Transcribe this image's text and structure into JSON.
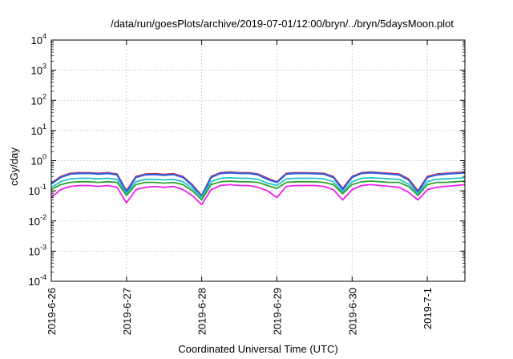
{
  "chart_data": {
    "type": "line",
    "title": "/data/run/goesPlots/archive/2019-07-01/12:00/bryn/../bryn/5daysMoon.plot",
    "xlabel": "Coordinated Universal Time (UTC)",
    "ylabel": "cGy/day",
    "yscale": "log",
    "ylim": [
      0.0001,
      10000
    ],
    "xlim": [
      "2019-06-26",
      "2019-07-01 12:00"
    ],
    "grid": true,
    "x_ticks": [
      "2019-6-26",
      "2019-6-27",
      "2019-6-28",
      "2019-6-29",
      "2019-6-30",
      "2019-7-1"
    ],
    "y_ticks": [
      {
        "base": "10",
        "exp": "-4"
      },
      {
        "base": "10",
        "exp": "-3"
      },
      {
        "base": "10",
        "exp": "-2"
      },
      {
        "base": "10",
        "exp": "-1"
      },
      {
        "base": "10",
        "exp": "0"
      },
      {
        "base": "10",
        "exp": "1"
      },
      {
        "base": "10",
        "exp": "2"
      },
      {
        "base": "10",
        "exp": "3"
      },
      {
        "base": "10",
        "exp": "4"
      }
    ],
    "x": [
      "2019-06-26 00:00",
      "2019-06-26 03:00",
      "2019-06-26 06:00",
      "2019-06-26 09:00",
      "2019-06-26 12:00",
      "2019-06-26 15:00",
      "2019-06-26 18:00",
      "2019-06-26 21:00",
      "2019-06-27 00:00",
      "2019-06-27 03:00",
      "2019-06-27 06:00",
      "2019-06-27 09:00",
      "2019-06-27 12:00",
      "2019-06-27 15:00",
      "2019-06-27 18:00",
      "2019-06-27 21:00",
      "2019-06-28 00:00",
      "2019-06-28 03:00",
      "2019-06-28 06:00",
      "2019-06-28 09:00",
      "2019-06-28 12:00",
      "2019-06-28 15:00",
      "2019-06-28 18:00",
      "2019-06-28 21:00",
      "2019-06-29 00:00",
      "2019-06-29 03:00",
      "2019-06-29 06:00",
      "2019-06-29 09:00",
      "2019-06-29 12:00",
      "2019-06-29 15:00",
      "2019-06-29 18:00",
      "2019-06-29 21:00",
      "2019-06-30 00:00",
      "2019-06-30 03:00",
      "2019-06-30 06:00",
      "2019-06-30 09:00",
      "2019-06-30 12:00",
      "2019-06-30 15:00",
      "2019-06-30 18:00",
      "2019-06-30 21:00",
      "2019-07-01 00:00",
      "2019-07-01 03:00",
      "2019-07-01 06:00",
      "2019-07-01 09:00",
      "2019-07-01 12:00"
    ],
    "series": [
      {
        "color": "#e0202a",
        "values": [
          0.18,
          0.3,
          0.38,
          0.4,
          0.4,
          0.38,
          0.4,
          0.36,
          0.1,
          0.3,
          0.36,
          0.37,
          0.35,
          0.37,
          0.3,
          0.16,
          0.07,
          0.3,
          0.4,
          0.42,
          0.4,
          0.4,
          0.36,
          0.26,
          0.2,
          0.38,
          0.4,
          0.4,
          0.39,
          0.38,
          0.3,
          0.12,
          0.3,
          0.4,
          0.42,
          0.4,
          0.38,
          0.36,
          0.25,
          0.1,
          0.3,
          0.36,
          0.38,
          0.4,
          0.42
        ]
      },
      {
        "color": "#3060e0",
        "values": [
          0.17,
          0.28,
          0.36,
          0.38,
          0.38,
          0.36,
          0.38,
          0.34,
          0.09,
          0.28,
          0.34,
          0.35,
          0.33,
          0.35,
          0.28,
          0.15,
          0.065,
          0.28,
          0.38,
          0.4,
          0.38,
          0.38,
          0.34,
          0.24,
          0.19,
          0.36,
          0.38,
          0.38,
          0.37,
          0.36,
          0.28,
          0.11,
          0.28,
          0.38,
          0.4,
          0.38,
          0.36,
          0.34,
          0.23,
          0.09,
          0.28,
          0.34,
          0.36,
          0.38,
          0.4
        ]
      },
      {
        "color": "#20c8c8",
        "values": [
          0.13,
          0.2,
          0.25,
          0.26,
          0.26,
          0.25,
          0.26,
          0.24,
          0.08,
          0.2,
          0.24,
          0.24,
          0.23,
          0.24,
          0.2,
          0.12,
          0.06,
          0.2,
          0.26,
          0.27,
          0.26,
          0.26,
          0.24,
          0.18,
          0.15,
          0.25,
          0.26,
          0.26,
          0.26,
          0.25,
          0.2,
          0.09,
          0.2,
          0.26,
          0.27,
          0.26,
          0.25,
          0.24,
          0.17,
          0.08,
          0.2,
          0.24,
          0.25,
          0.26,
          0.27
        ]
      },
      {
        "color": "#30a030",
        "values": [
          0.11,
          0.16,
          0.19,
          0.2,
          0.2,
          0.19,
          0.2,
          0.19,
          0.07,
          0.16,
          0.19,
          0.19,
          0.18,
          0.19,
          0.16,
          0.1,
          0.05,
          0.16,
          0.2,
          0.21,
          0.2,
          0.2,
          0.19,
          0.15,
          0.12,
          0.19,
          0.2,
          0.2,
          0.2,
          0.19,
          0.16,
          0.08,
          0.16,
          0.2,
          0.21,
          0.2,
          0.19,
          0.19,
          0.14,
          0.07,
          0.16,
          0.19,
          0.19,
          0.2,
          0.21
        ]
      },
      {
        "color": "#f020f0",
        "values": [
          0.06,
          0.11,
          0.14,
          0.15,
          0.15,
          0.14,
          0.15,
          0.13,
          0.04,
          0.11,
          0.13,
          0.14,
          0.13,
          0.14,
          0.11,
          0.07,
          0.035,
          0.11,
          0.15,
          0.16,
          0.15,
          0.15,
          0.13,
          0.1,
          0.06,
          0.14,
          0.15,
          0.15,
          0.15,
          0.14,
          0.11,
          0.05,
          0.11,
          0.15,
          0.16,
          0.15,
          0.14,
          0.13,
          0.09,
          0.05,
          0.11,
          0.13,
          0.14,
          0.15,
          0.16
        ]
      }
    ]
  }
}
